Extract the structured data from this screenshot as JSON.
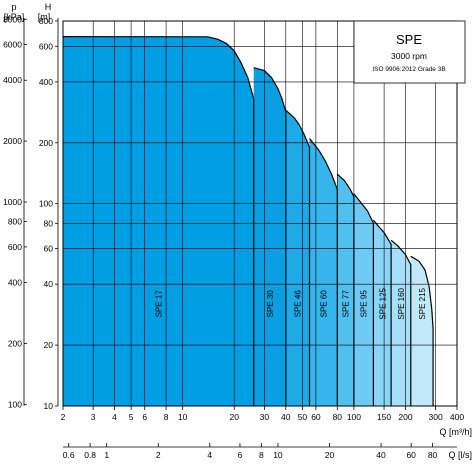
{
  "chart_data": {
    "type": "area",
    "title": "SPE",
    "subtitle": "3000 rpm",
    "standard": "ISO 9906:2012 Grade 3B",
    "scale": "log-log",
    "grid": true,
    "axes": {
      "q_m3h": {
        "label": "Q [m³/h]",
        "range": [
          2,
          400
        ],
        "ticks": [
          "2",
          "3",
          "4",
          "5",
          "6",
          "8",
          "10",
          "20",
          "30",
          "40",
          "50",
          "60",
          "80",
          "100",
          "150",
          "200",
          "300",
          "400"
        ],
        "tick_values": [
          2,
          3,
          4,
          5,
          6,
          8,
          10,
          20,
          30,
          40,
          50,
          60,
          80,
          100,
          150,
          200,
          300,
          400
        ]
      },
      "q_ls": {
        "label": "Q [l/s]",
        "ticks": [
          "0.6",
          "0.8",
          "1",
          "2",
          "4",
          "6",
          "8",
          "10",
          "20",
          "40",
          "60",
          "80"
        ],
        "tick_values": [
          0.6,
          0.8,
          1,
          2,
          4,
          6,
          8,
          10,
          20,
          40,
          60,
          80
        ]
      },
      "h_m": {
        "label": "H\n[m]",
        "range": [
          10,
          800
        ],
        "ticks": [
          "800",
          "600",
          "400",
          "200",
          "100",
          "80",
          "60",
          "40",
          "20",
          "10"
        ],
        "tick_values": [
          800,
          600,
          400,
          200,
          100,
          80,
          60,
          40,
          20,
          10
        ]
      },
      "p_kpa": {
        "label": "p\n[kPa]",
        "ticks": [
          "8000",
          "6000",
          "4000",
          "2000",
          "1000",
          "800",
          "600",
          "400",
          "200",
          "100"
        ],
        "tick_values": [
          8000,
          6000,
          4000,
          2000,
          1000,
          800,
          600,
          400,
          200,
          100
        ]
      }
    },
    "series": [
      {
        "name": "SPE 17",
        "color": "#009fe3",
        "q_min": 2,
        "q_max": 26,
        "curve": [
          [
            2,
            670
          ],
          [
            14,
            668
          ],
          [
            16,
            650
          ],
          [
            18,
            620
          ],
          [
            20,
            570
          ],
          [
            22,
            495
          ],
          [
            24,
            420
          ],
          [
            26,
            330
          ]
        ]
      },
      {
        "name": "SPE 30",
        "color": "#0a9fe2",
        "q_min": 26,
        "q_max": 40,
        "curve": [
          [
            26,
            470
          ],
          [
            30,
            455
          ],
          [
            33,
            420
          ],
          [
            36,
            370
          ],
          [
            38,
            330
          ],
          [
            40,
            285
          ]
        ]
      },
      {
        "name": "SPE 46",
        "color": "#1ea9e8",
        "q_min": 40,
        "q_max": 55,
        "curve": [
          [
            40,
            290
          ],
          [
            45,
            265
          ],
          [
            48,
            245
          ],
          [
            51,
            222
          ],
          [
            55,
            190
          ]
        ]
      },
      {
        "name": "SPE 60",
        "color": "#36b4ec",
        "q_min": 55,
        "q_max": 80,
        "curve": [
          [
            55,
            210
          ],
          [
            62,
            185
          ],
          [
            68,
            163
          ],
          [
            74,
            140
          ],
          [
            80,
            118
          ]
        ]
      },
      {
        "name": "SPE 77",
        "color": "#52c0ef",
        "q_min": 80,
        "q_max": 100,
        "curve": [
          [
            80,
            140
          ],
          [
            88,
            130
          ],
          [
            95,
            118
          ],
          [
            100,
            108
          ]
        ]
      },
      {
        "name": "SPE 95",
        "color": "#6ecaf2",
        "q_min": 100,
        "q_max": 130,
        "curve": [
          [
            100,
            112
          ],
          [
            110,
            101
          ],
          [
            120,
            92
          ],
          [
            130,
            80
          ]
        ]
      },
      {
        "name": "SPE 125",
        "color": "#8ad4f5",
        "q_min": 130,
        "q_max": 165,
        "curve": [
          [
            130,
            83
          ],
          [
            140,
            77
          ],
          [
            150,
            72
          ],
          [
            165,
            63
          ]
        ]
      },
      {
        "name": "SPE 160",
        "color": "#a6dff7",
        "q_min": 165,
        "q_max": 215,
        "curve": [
          [
            165,
            66
          ],
          [
            180,
            62
          ],
          [
            200,
            56
          ],
          [
            215,
            50
          ]
        ]
      },
      {
        "name": "SPE 215",
        "color": "#c2e9fa",
        "q_min": 215,
        "q_max": 290,
        "curve": [
          [
            215,
            55
          ],
          [
            240,
            52
          ],
          [
            260,
            47
          ],
          [
            275,
            39
          ],
          [
            285,
            30
          ],
          [
            290,
            24
          ]
        ]
      }
    ]
  }
}
